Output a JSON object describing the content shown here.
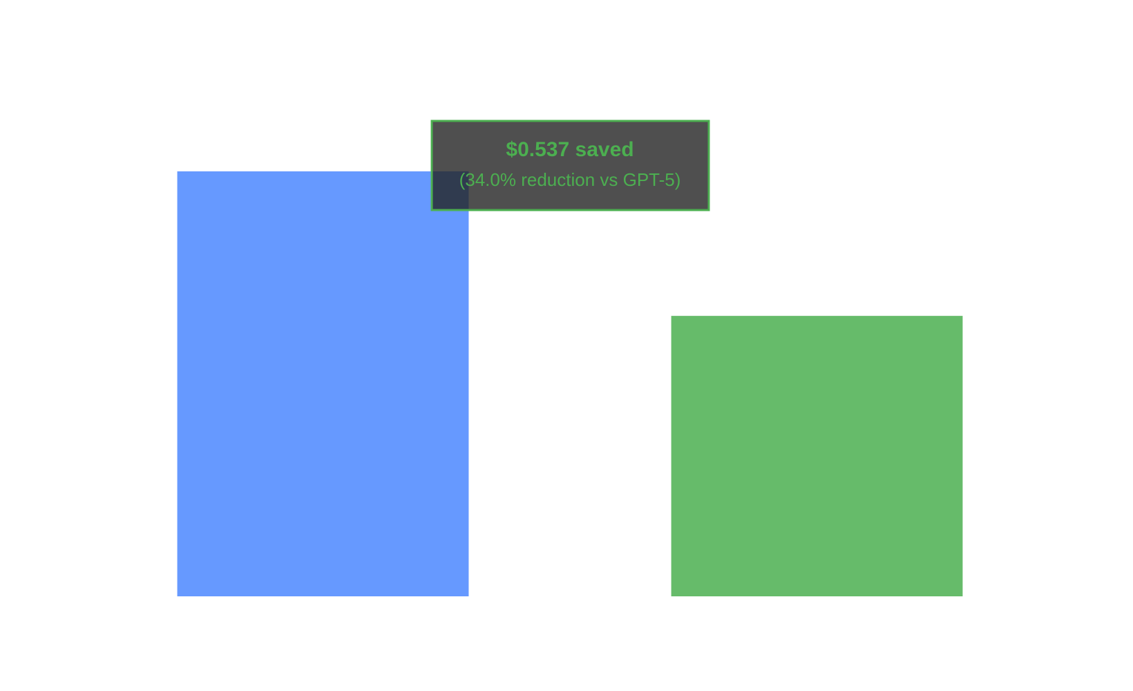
{
  "chart_data": {
    "type": "bar",
    "categories": [
      null,
      null
    ],
    "series": [
      {
        "values": [
          1.579,
          1.042
        ],
        "colors": [
          "#6699ff",
          "#66bb6a"
        ]
      }
    ],
    "ylim": [
      0,
      2
    ],
    "annotations": [
      "$0.537 saved",
      "(34.0% reduction vs GPT-5)"
    ]
  }
}
